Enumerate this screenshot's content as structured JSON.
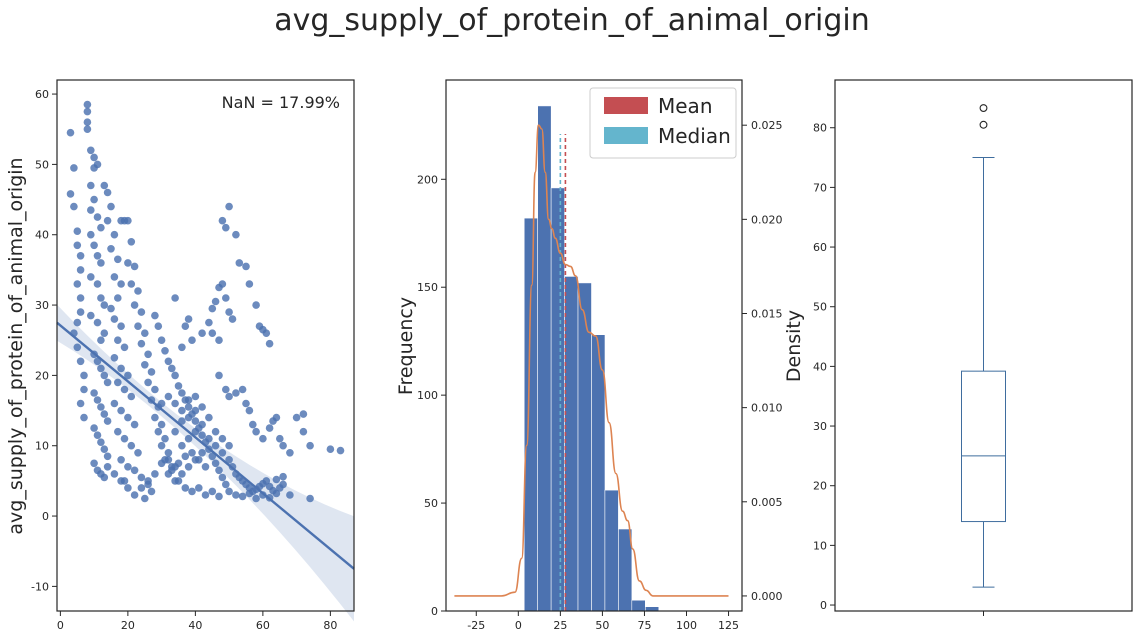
{
  "figure": {
    "title": "avg_supply_of_protein_of_animal_origin"
  },
  "colors": {
    "scatter": "#4c72b0",
    "regression": "#4c72b0",
    "hist": "#4c72b0",
    "kde": "#dd8452",
    "mean": "#c44e52",
    "median": "#64b5cd",
    "box": "#3f6d9e"
  },
  "chart_data": [
    {
      "type": "scatter",
      "title": "",
      "xlabel": "",
      "ylabel": "avg_supply_of_protein_of_animal_origin",
      "annotation": "NaN = 17.99%",
      "xlim": [
        -1,
        87
      ],
      "ylim": [
        -13.5,
        62
      ],
      "xticks": [
        0,
        20,
        40,
        60,
        80
      ],
      "yticks": [
        -10,
        0,
        10,
        20,
        30,
        40,
        50,
        60
      ],
      "regression": {
        "x": [
          -1,
          87
        ],
        "y": [
          27.5,
          -7.5
        ]
      },
      "points": [
        [
          3,
          54.5
        ],
        [
          3,
          45.8
        ],
        [
          4,
          49.5
        ],
        [
          4,
          44
        ],
        [
          5,
          40.5
        ],
        [
          5,
          38.5
        ],
        [
          6,
          37
        ],
        [
          6,
          35
        ],
        [
          5,
          33
        ],
        [
          6,
          31
        ],
        [
          6,
          29
        ],
        [
          5,
          27.5
        ],
        [
          4,
          26
        ],
        [
          5,
          24
        ],
        [
          6,
          22
        ],
        [
          7,
          20
        ],
        [
          7,
          18
        ],
        [
          6,
          16
        ],
        [
          7,
          14
        ],
        [
          8,
          58.5
        ],
        [
          8,
          57.5
        ],
        [
          8,
          56
        ],
        [
          8,
          55
        ],
        [
          9,
          52
        ],
        [
          10,
          51
        ],
        [
          10,
          49.5
        ],
        [
          11,
          50
        ],
        [
          9,
          47
        ],
        [
          10,
          45
        ],
        [
          9,
          43.5
        ],
        [
          11,
          42.5
        ],
        [
          12,
          41
        ],
        [
          9,
          40
        ],
        [
          10,
          38.5
        ],
        [
          11,
          37
        ],
        [
          12,
          36
        ],
        [
          9,
          34
        ],
        [
          11,
          33
        ],
        [
          12,
          31
        ],
        [
          13,
          30
        ],
        [
          9,
          28.5
        ],
        [
          11,
          27.5
        ],
        [
          13,
          26
        ],
        [
          12,
          25
        ],
        [
          10,
          23
        ],
        [
          11,
          22
        ],
        [
          12,
          21
        ],
        [
          13,
          20
        ],
        [
          14,
          19
        ],
        [
          10,
          17.5
        ],
        [
          11,
          16.5
        ],
        [
          12,
          15.5
        ],
        [
          13,
          14.5
        ],
        [
          14,
          13.5
        ],
        [
          10,
          12.5
        ],
        [
          11,
          11.5
        ],
        [
          12,
          10.5
        ],
        [
          13,
          9.5
        ],
        [
          14,
          8.5
        ],
        [
          10,
          7.5
        ],
        [
          11,
          6.5
        ],
        [
          12,
          6
        ],
        [
          13,
          5.5
        ],
        [
          13,
          47
        ],
        [
          14,
          46
        ],
        [
          15,
          44
        ],
        [
          14,
          42
        ],
        [
          16,
          40
        ],
        [
          15,
          38
        ],
        [
          17,
          36.5
        ],
        [
          16,
          34
        ],
        [
          18,
          33
        ],
        [
          17,
          31
        ],
        [
          15,
          29.5
        ],
        [
          16,
          28
        ],
        [
          18,
          27
        ],
        [
          17,
          25
        ],
        [
          19,
          24
        ],
        [
          16,
          22.5
        ],
        [
          18,
          21
        ],
        [
          20,
          20
        ],
        [
          17,
          19
        ],
        [
          19,
          18
        ],
        [
          21,
          17
        ],
        [
          16,
          16
        ],
        [
          18,
          15
        ],
        [
          20,
          14
        ],
        [
          22,
          13
        ],
        [
          17,
          12
        ],
        [
          19,
          11
        ],
        [
          21,
          10
        ],
        [
          23,
          9
        ],
        [
          18,
          8
        ],
        [
          20,
          7
        ],
        [
          22,
          6.5
        ],
        [
          24,
          5.5
        ],
        [
          19,
          5
        ],
        [
          18,
          42
        ],
        [
          19,
          42
        ],
        [
          20,
          42
        ],
        [
          21,
          39
        ],
        [
          20,
          36
        ],
        [
          22,
          35.5
        ],
        [
          21,
          33
        ],
        [
          23,
          32
        ],
        [
          22,
          30
        ],
        [
          24,
          29
        ],
        [
          23,
          27
        ],
        [
          25,
          26
        ],
        [
          24,
          24.5
        ],
        [
          26,
          23
        ],
        [
          25,
          21.5
        ],
        [
          27,
          20.5
        ],
        [
          26,
          19
        ],
        [
          28,
          18
        ],
        [
          27,
          16.5
        ],
        [
          29,
          15.5
        ],
        [
          28,
          14
        ],
        [
          30,
          13
        ],
        [
          29,
          12
        ],
        [
          31,
          11
        ],
        [
          30,
          10
        ],
        [
          32,
          9
        ],
        [
          31,
          8
        ],
        [
          33,
          7
        ],
        [
          32,
          6
        ],
        [
          34,
          5
        ],
        [
          26,
          4.5
        ],
        [
          27,
          3.5
        ],
        [
          25,
          2.5
        ],
        [
          28,
          28.5
        ],
        [
          29,
          27
        ],
        [
          30,
          25
        ],
        [
          31,
          23.5
        ],
        [
          32,
          22
        ],
        [
          33,
          21
        ],
        [
          34,
          20
        ],
        [
          35,
          18.5
        ],
        [
          36,
          17.5
        ],
        [
          37,
          16.5
        ],
        [
          38,
          15.5
        ],
        [
          39,
          14.5
        ],
        [
          40,
          13.5
        ],
        [
          41,
          12.5
        ],
        [
          42,
          11.5
        ],
        [
          43,
          10.5
        ],
        [
          44,
          9.5
        ],
        [
          45,
          8.5
        ],
        [
          46,
          7.5
        ],
        [
          47,
          6.5
        ],
        [
          48,
          5.5
        ],
        [
          49,
          4.5
        ],
        [
          50,
          3.5
        ],
        [
          35,
          5
        ],
        [
          37,
          4
        ],
        [
          39,
          3.5
        ],
        [
          41,
          4
        ],
        [
          43,
          3
        ],
        [
          45,
          3.5
        ],
        [
          47,
          2.8
        ],
        [
          33,
          6.5
        ],
        [
          35,
          7.5
        ],
        [
          37,
          8.5
        ],
        [
          39,
          9
        ],
        [
          41,
          8
        ],
        [
          43,
          7
        ],
        [
          36,
          10
        ],
        [
          38,
          11
        ],
        [
          40,
          12
        ],
        [
          42,
          13
        ],
        [
          34,
          12
        ],
        [
          36,
          13.5
        ],
        [
          38,
          14
        ],
        [
          40,
          15
        ],
        [
          30,
          16
        ],
        [
          32,
          17
        ],
        [
          34,
          16
        ],
        [
          36,
          15
        ],
        [
          38,
          16.5
        ],
        [
          40,
          17
        ],
        [
          42,
          15.5
        ],
        [
          44,
          14
        ],
        [
          46,
          12
        ],
        [
          48,
          11
        ],
        [
          34,
          31
        ],
        [
          37,
          27
        ],
        [
          38,
          28
        ],
        [
          39,
          25
        ],
        [
          36,
          24
        ],
        [
          42,
          26
        ],
        [
          44,
          27.5
        ],
        [
          45,
          29.5
        ],
        [
          46,
          30.5
        ],
        [
          47,
          32.5
        ],
        [
          48,
          33
        ],
        [
          49,
          31
        ],
        [
          50,
          29
        ],
        [
          51,
          28
        ],
        [
          45,
          26
        ],
        [
          47,
          25
        ],
        [
          48,
          42
        ],
        [
          49,
          41
        ],
        [
          50,
          44
        ],
        [
          52,
          40
        ],
        [
          53,
          36
        ],
        [
          55,
          35.5
        ],
        [
          56,
          33
        ],
        [
          58,
          30
        ],
        [
          59,
          27
        ],
        [
          60,
          26.5
        ],
        [
          61,
          26
        ],
        [
          62,
          24.5
        ],
        [
          47,
          20
        ],
        [
          49,
          18
        ],
        [
          50,
          17
        ],
        [
          52,
          17.5
        ],
        [
          54,
          18
        ],
        [
          55,
          16
        ],
        [
          56,
          15
        ],
        [
          57,
          13
        ],
        [
          58,
          12
        ],
        [
          60,
          11
        ],
        [
          62,
          12.5
        ],
        [
          63,
          13.5
        ],
        [
          64,
          14
        ],
        [
          65,
          11
        ],
        [
          66,
          10
        ],
        [
          68,
          9
        ],
        [
          70,
          14
        ],
        [
          72,
          14.5
        ],
        [
          72,
          12
        ],
        [
          74,
          10
        ],
        [
          80,
          9.5
        ],
        [
          83,
          9.3
        ],
        [
          50,
          8
        ],
        [
          51,
          7
        ],
        [
          52,
          6
        ],
        [
          53,
          5.5
        ],
        [
          54,
          5
        ],
        [
          55,
          4.5
        ],
        [
          56,
          4
        ],
        [
          57,
          3.5
        ],
        [
          58,
          3.8
        ],
        [
          59,
          4.2
        ],
        [
          60,
          4.6
        ],
        [
          61,
          5
        ],
        [
          62,
          4.2
        ],
        [
          63,
          3.6
        ],
        [
          64,
          3.2
        ],
        [
          65,
          4
        ],
        [
          66,
          4.5
        ],
        [
          52,
          3
        ],
        [
          54,
          2.8
        ],
        [
          56,
          3.2
        ],
        [
          58,
          2.5
        ],
        [
          60,
          3
        ],
        [
          62,
          2.6
        ],
        [
          68,
          3
        ],
        [
          74,
          2.5
        ],
        [
          64,
          5.2
        ],
        [
          66,
          5.6
        ],
        [
          48,
          9
        ],
        [
          50,
          10
        ],
        [
          46,
          10
        ],
        [
          44,
          11
        ],
        [
          42,
          9
        ],
        [
          40,
          8
        ],
        [
          38,
          7
        ],
        [
          36,
          6
        ],
        [
          34,
          7
        ],
        [
          32,
          8
        ],
        [
          30,
          7.5
        ],
        [
          28,
          6
        ],
        [
          26,
          5
        ],
        [
          24,
          4
        ],
        [
          22,
          3
        ],
        [
          20,
          4
        ],
        [
          18,
          5
        ],
        [
          16,
          6
        ],
        [
          14,
          7
        ]
      ]
    },
    {
      "type": "bar",
      "subtype": "histogram",
      "title": "",
      "xlabel": "",
      "ylabel": "Frequency",
      "y2label": "Density",
      "xlim": [
        -43,
        133
      ],
      "ylim": [
        0,
        246
      ],
      "y2lim": [
        -0.0008,
        0.0274
      ],
      "xticks": [
        -25,
        0,
        25,
        50,
        75,
        100,
        125
      ],
      "yticks": [
        0,
        50,
        100,
        150,
        200
      ],
      "y2ticks": [
        0.0,
        0.005,
        0.01,
        0.015,
        0.02,
        0.025
      ],
      "y2ticklabels": [
        "0.000",
        "0.005",
        "0.010",
        "0.015",
        "0.020",
        "0.025"
      ],
      "bin_edges": [
        3.5,
        11.5,
        19.5,
        27.5,
        35.5,
        43.5,
        51.5,
        59.5,
        67.5,
        75.5,
        83.5
      ],
      "counts": [
        182,
        234,
        196,
        155,
        152,
        128,
        56,
        38,
        5,
        2
      ],
      "mean": 28,
      "median": 25,
      "legend": [
        "Mean",
        "Median"
      ],
      "legend_position": "top-right",
      "kde": {
        "x": [
          -38,
          -20,
          -10,
          -2,
          2,
          5,
          8,
          10,
          12,
          14,
          16,
          18,
          20,
          22,
          25,
          28,
          31,
          34,
          38,
          42,
          46,
          50,
          54,
          58,
          62,
          65,
          68,
          72,
          76,
          80,
          85,
          95,
          110,
          125
        ],
        "y": [
          0.0,
          0.0,
          0.0,
          0.0002,
          0.002,
          0.008,
          0.0165,
          0.0225,
          0.025,
          0.0248,
          0.0225,
          0.02,
          0.0195,
          0.019,
          0.0182,
          0.0176,
          0.0175,
          0.017,
          0.0152,
          0.014,
          0.0138,
          0.012,
          0.0092,
          0.0065,
          0.0045,
          0.004,
          0.0025,
          0.0008,
          0.0003,
          0.0,
          0.0,
          0.0,
          0.0,
          0.0
        ]
      }
    },
    {
      "type": "box",
      "title": "",
      "xlabel": "",
      "ylabel": "Density",
      "ylim": [
        -1,
        88
      ],
      "yticks": [
        0,
        10,
        20,
        30,
        40,
        50,
        60,
        70,
        80
      ],
      "whisker_low": 3,
      "q1": 14,
      "median": 25,
      "q3": 39.2,
      "whisker_high": 75,
      "outliers": [
        80.5,
        83.3
      ]
    }
  ]
}
